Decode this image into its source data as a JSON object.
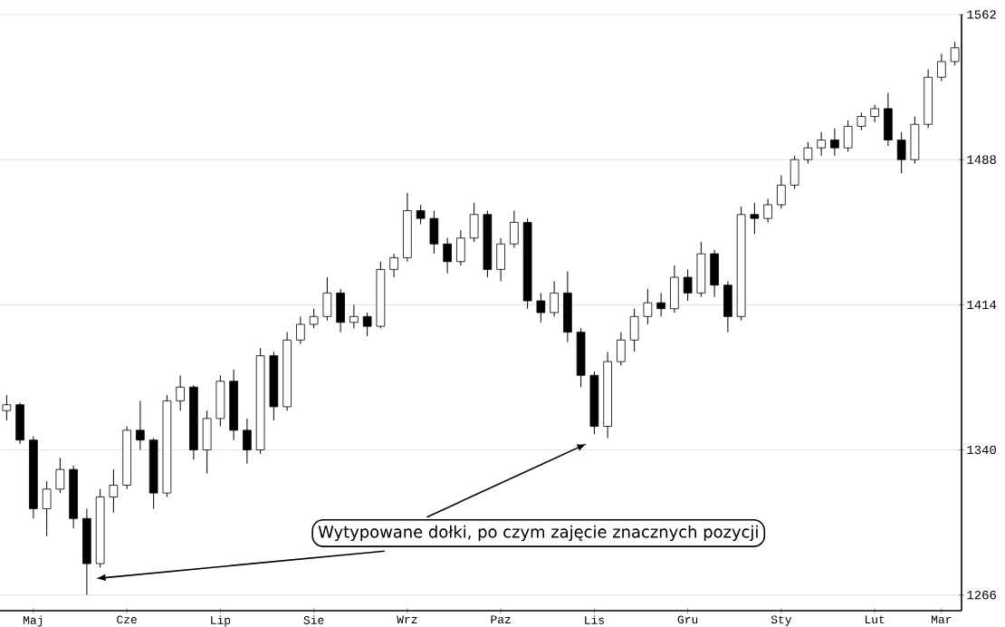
{
  "chart_data": {
    "type": "candlestick",
    "categories": [
      null,
      null,
      "Maj",
      null,
      null,
      null,
      null,
      null,
      null,
      "Cze",
      null,
      null,
      null,
      null,
      null,
      null,
      "Lip",
      null,
      null,
      null,
      null,
      null,
      null,
      "Sie",
      null,
      null,
      null,
      null,
      null,
      null,
      "Wrz",
      null,
      null,
      null,
      null,
      null,
      null,
      "Paz",
      null,
      null,
      null,
      null,
      null,
      null,
      "Lis",
      null,
      null,
      null,
      null,
      null,
      null,
      "Gru",
      null,
      null,
      null,
      null,
      null,
      null,
      "Sty",
      null,
      null,
      null,
      null,
      null,
      null,
      "Lut",
      null,
      null,
      null,
      null,
      "Mar",
      null
    ],
    "ohlc": [
      [
        1360,
        1368,
        1355,
        1363
      ],
      [
        1363,
        1364,
        1343,
        1345
      ],
      [
        1345,
        1347,
        1305,
        1310
      ],
      [
        1310,
        1324,
        1296,
        1320
      ],
      [
        1320,
        1336,
        1318,
        1330
      ],
      [
        1330,
        1332,
        1300,
        1305
      ],
      [
        1305,
        1310,
        1266,
        1282
      ],
      [
        1282,
        1320,
        1280,
        1316
      ],
      [
        1316,
        1330,
        1308,
        1322
      ],
      [
        1322,
        1352,
        1320,
        1350
      ],
      [
        1350,
        1365,
        1340,
        1345
      ],
      [
        1345,
        1346,
        1310,
        1318
      ],
      [
        1318,
        1368,
        1316,
        1365
      ],
      [
        1365,
        1378,
        1360,
        1372
      ],
      [
        1372,
        1373,
        1335,
        1340
      ],
      [
        1340,
        1360,
        1328,
        1356
      ],
      [
        1356,
        1378,
        1352,
        1375
      ],
      [
        1375,
        1381,
        1345,
        1350
      ],
      [
        1350,
        1356,
        1333,
        1340
      ],
      [
        1340,
        1392,
        1338,
        1388
      ],
      [
        1388,
        1390,
        1355,
        1362
      ],
      [
        1362,
        1400,
        1360,
        1396
      ],
      [
        1396,
        1408,
        1394,
        1404
      ],
      [
        1404,
        1412,
        1402,
        1408
      ],
      [
        1408,
        1428,
        1406,
        1420
      ],
      [
        1420,
        1422,
        1400,
        1405
      ],
      [
        1405,
        1414,
        1402,
        1408
      ],
      [
        1408,
        1410,
        1398,
        1403
      ],
      [
        1403,
        1436,
        1402,
        1432
      ],
      [
        1432,
        1440,
        1428,
        1438
      ],
      [
        1438,
        1471,
        1436,
        1462
      ],
      [
        1462,
        1465,
        1455,
        1458
      ],
      [
        1458,
        1462,
        1440,
        1445
      ],
      [
        1445,
        1448,
        1430,
        1436
      ],
      [
        1436,
        1452,
        1434,
        1448
      ],
      [
        1448,
        1466,
        1446,
        1460
      ],
      [
        1460,
        1462,
        1428,
        1432
      ],
      [
        1432,
        1448,
        1426,
        1445
      ],
      [
        1445,
        1462,
        1443,
        1456
      ],
      [
        1456,
        1458,
        1412,
        1416
      ],
      [
        1416,
        1420,
        1405,
        1410
      ],
      [
        1410,
        1426,
        1408,
        1420
      ],
      [
        1420,
        1431,
        1395,
        1400
      ],
      [
        1400,
        1402,
        1372,
        1378
      ],
      [
        1378,
        1380,
        1348,
        1352
      ],
      [
        1352,
        1390,
        1346,
        1385
      ],
      [
        1385,
        1400,
        1383,
        1396
      ],
      [
        1396,
        1412,
        1390,
        1408
      ],
      [
        1408,
        1422,
        1404,
        1415
      ],
      [
        1415,
        1420,
        1408,
        1412
      ],
      [
        1412,
        1434,
        1410,
        1428
      ],
      [
        1428,
        1432,
        1416,
        1420
      ],
      [
        1420,
        1446,
        1418,
        1440
      ],
      [
        1440,
        1442,
        1418,
        1424
      ],
      [
        1424,
        1426,
        1400,
        1408
      ],
      [
        1408,
        1464,
        1406,
        1460
      ],
      [
        1460,
        1466,
        1450,
        1458
      ],
      [
        1458,
        1468,
        1456,
        1465
      ],
      [
        1465,
        1480,
        1463,
        1475
      ],
      [
        1475,
        1490,
        1473,
        1488
      ],
      [
        1488,
        1497,
        1486,
        1494
      ],
      [
        1494,
        1502,
        1490,
        1498
      ],
      [
        1498,
        1504,
        1490,
        1494
      ],
      [
        1494,
        1508,
        1492,
        1505
      ],
      [
        1505,
        1512,
        1503,
        1510
      ],
      [
        1510,
        1516,
        1507,
        1514
      ],
      [
        1514,
        1522,
        1495,
        1498
      ],
      [
        1498,
        1502,
        1481,
        1488
      ],
      [
        1488,
        1510,
        1486,
        1506
      ],
      [
        1506,
        1534,
        1504,
        1530
      ],
      [
        1530,
        1542,
        1528,
        1538
      ],
      [
        1538,
        1548,
        1536,
        1545
      ]
    ],
    "ylim": [
      1258,
      1562
    ],
    "yticks": [
      1266,
      1340,
      1414,
      1488,
      1562
    ],
    "grid": "y",
    "annotations": [
      "Wytypowane dołki, po czym zajęcie znacznych pozycji"
    ]
  }
}
